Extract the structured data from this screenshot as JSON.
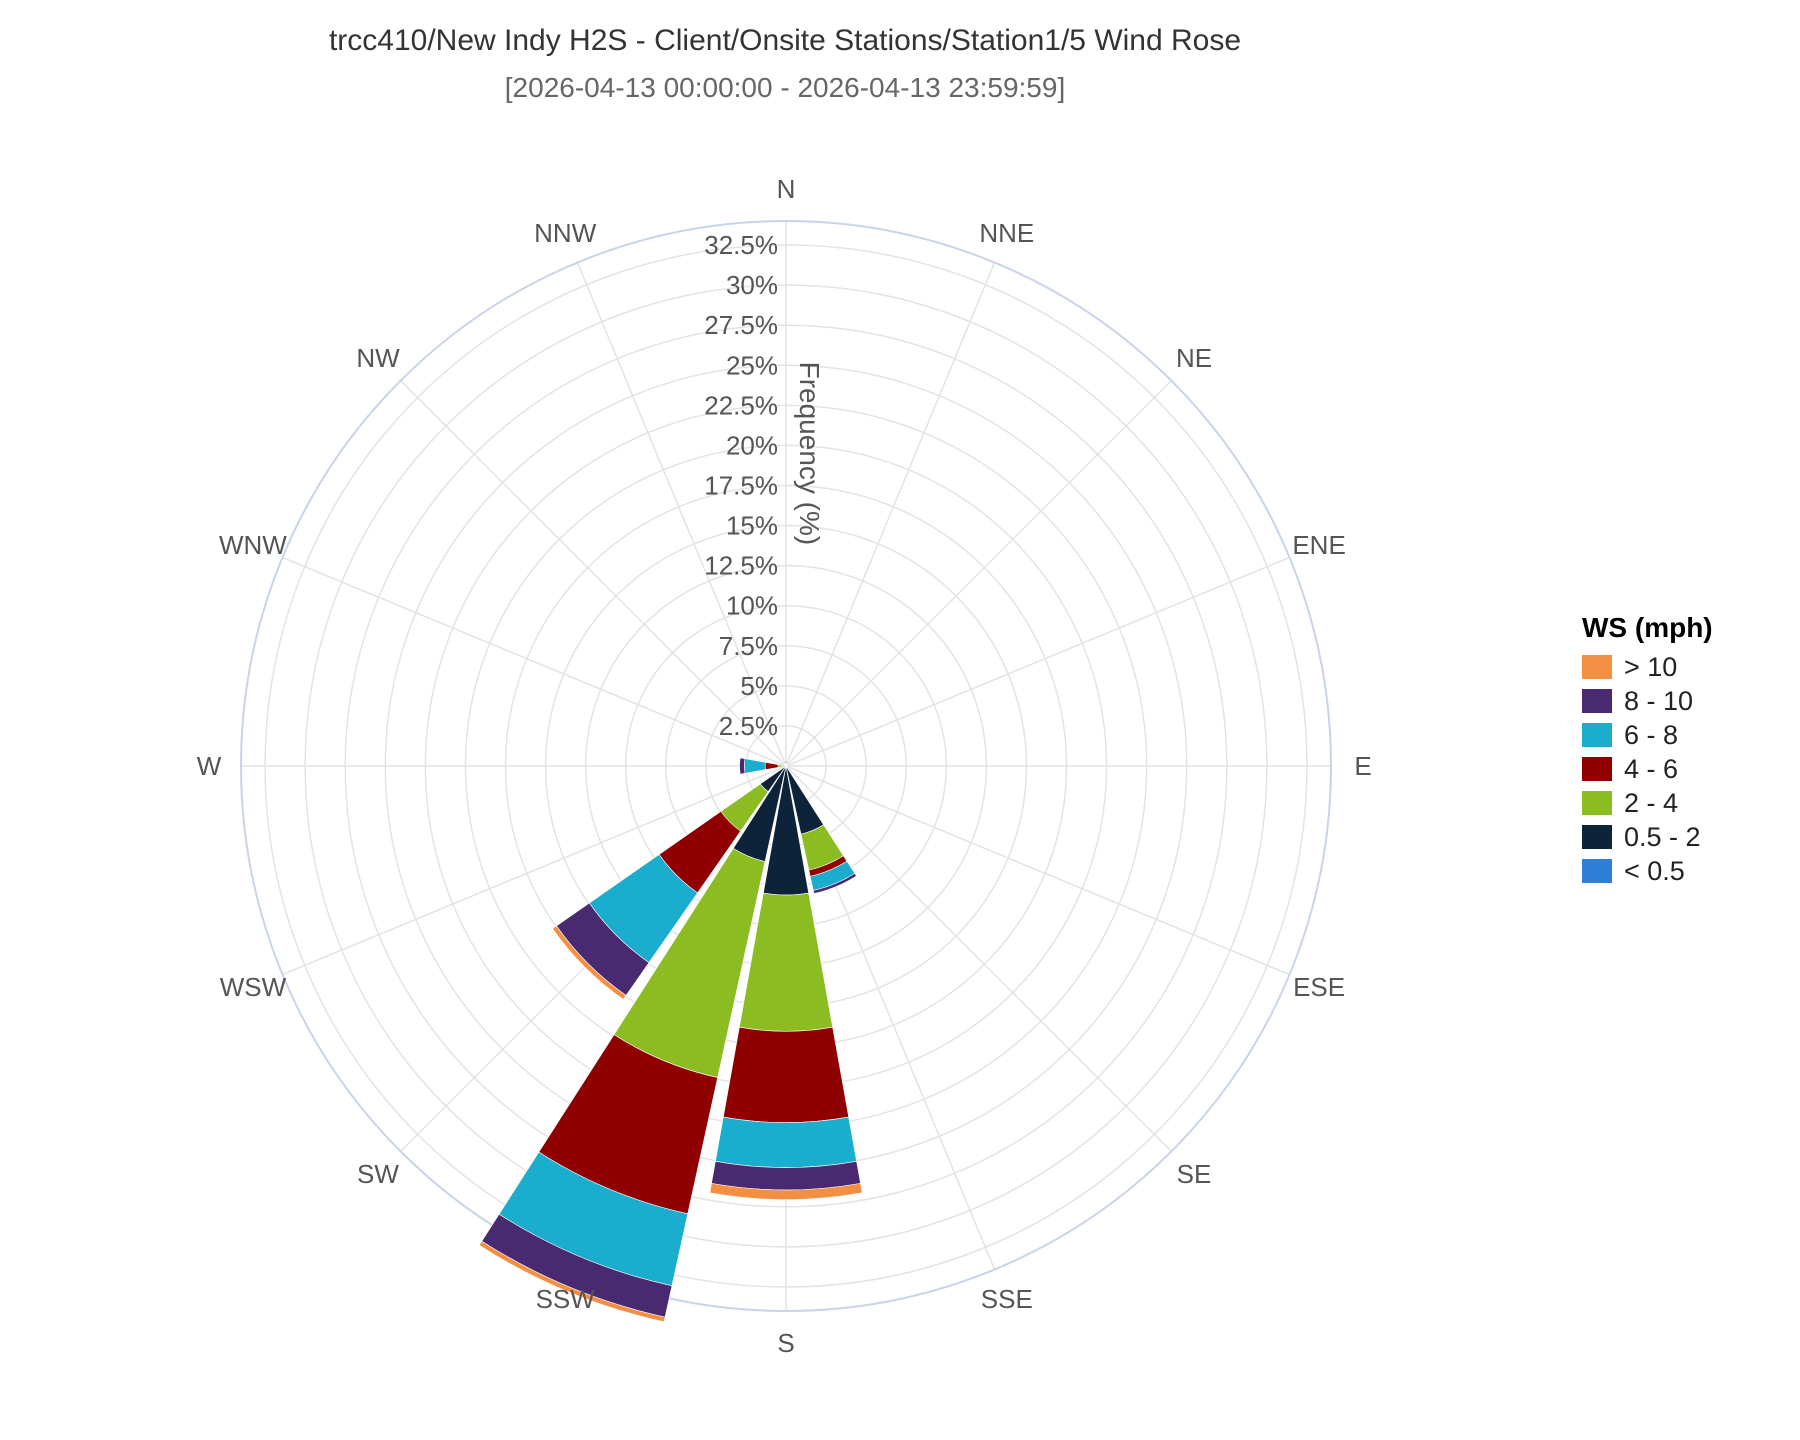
{
  "title": "trcc410/New Indy H2S - Client/Onsite Stations/Station1/5 Wind Rose",
  "subtitle": "[2026-04-13 00:00:00 - 2026-04-13 23:59:59]",
  "chart_data": {
    "type": "barpolar",
    "title": "trcc410/New Indy H2S - Client/Onsite Stations/Station1/5 Wind Rose",
    "subtitle": "[2026-04-13 00:00:00 - 2026-04-13 23:59:59]",
    "radial_axis_label": "Frequency (%)",
    "radial_range": [
      0,
      34
    ],
    "radial_ticks": [
      "2.5%",
      "5%",
      "7.5%",
      "10%",
      "12.5%",
      "15%",
      "17.5%",
      "20%",
      "22.5%",
      "25%",
      "27.5%",
      "30%",
      "32.5%"
    ],
    "radial_tick_values": [
      2.5,
      5,
      7.5,
      10,
      12.5,
      15,
      17.5,
      20,
      22.5,
      25,
      27.5,
      30,
      32.5
    ],
    "directions": [
      "N",
      "NNE",
      "NE",
      "ENE",
      "E",
      "ESE",
      "SE",
      "SSE",
      "S",
      "SSW",
      "SW",
      "WSW",
      "W",
      "WNW",
      "NW",
      "NNW"
    ],
    "grid": true,
    "legend_title": "WS (mph)",
    "legend_position": "right",
    "series": [
      {
        "name": "< 0.5",
        "color": "#2f7ed8",
        "values": [
          0.2,
          0,
          0,
          0,
          0,
          0,
          0,
          0.05,
          0.05,
          0.1,
          0.05,
          0,
          0,
          0.05,
          0.05,
          0.05
        ]
      },
      {
        "name": "0.5 - 2",
        "color": "#0d233a",
        "values": [
          0.1,
          0.1,
          0.1,
          0.2,
          0,
          0,
          0.1,
          4.3,
          8.0,
          6.0,
          1.9,
          0,
          0.2,
          0.1,
          0.1,
          0.1
        ]
      },
      {
        "name": "2 - 4",
        "color": "#8bbc21",
        "values": [
          0,
          0,
          0,
          0,
          0.1,
          0,
          0,
          2.3,
          8.5,
          13.8,
          3.0,
          0,
          0.3,
          0,
          0,
          0
        ]
      },
      {
        "name": "4 - 6",
        "color": "#910000",
        "values": [
          0,
          0,
          0,
          0,
          0,
          0,
          0,
          0.4,
          5.7,
          8.7,
          4.7,
          0,
          0.8,
          0,
          0,
          0
        ]
      },
      {
        "name": "6 - 8",
        "color": "#1aadce",
        "values": [
          0,
          0,
          0,
          0,
          0,
          0,
          0,
          0.9,
          2.8,
          4.6,
          5.3,
          0,
          1.3,
          0,
          0,
          0
        ]
      },
      {
        "name": "8 - 10",
        "color": "#492970",
        "values": [
          0,
          0,
          0,
          0,
          0,
          0,
          0,
          0.2,
          1.4,
          2.0,
          2.5,
          0,
          0.3,
          0,
          0,
          0
        ]
      },
      {
        "name": "> 10",
        "color": "#f28f43",
        "values": [
          0,
          0,
          0,
          0,
          0,
          0,
          0,
          0,
          0.6,
          0.3,
          0.3,
          0,
          0,
          0,
          0,
          0
        ]
      }
    ]
  }
}
